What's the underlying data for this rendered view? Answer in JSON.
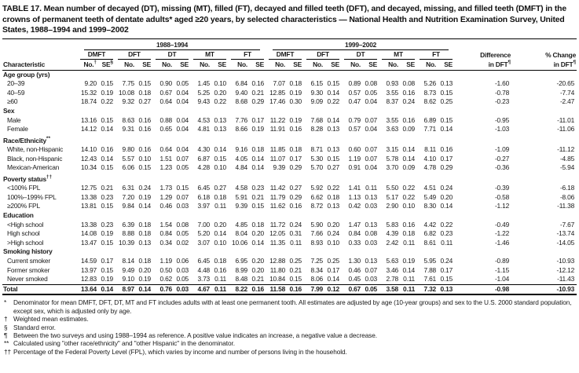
{
  "title": "TABLE 17. Mean number of decayed (DT), missing (MT), filled (FT), decayed and filled teeth (DFT), and decayed, missing, and filled teeth (DMFT) in the crowns of permanent teeth of dentate adults* aged ≥20 years, by selected characteristics — National Health and Nutrition Examination Survey, United States, 1988–1994 and 1999–2002",
  "header": {
    "characteristic": "Characteristic",
    "periods": [
      "1988–1994",
      "1999–2002"
    ],
    "measures": [
      "DMFT",
      "DFT",
      "DT",
      "MT",
      "FT"
    ],
    "no_label": "No.",
    "se_label": "SE",
    "no_sup": "†",
    "se_sup": "§",
    "difference_line1": "Difference",
    "difference_line2": "in DFT",
    "difference_sup": "¶",
    "pct_change_line1": "% Change",
    "pct_change_line2": "in DFT",
    "pct_change_sup": "¶"
  },
  "sections": [
    {
      "label": "Age group (yrs)",
      "sup": "",
      "rows": [
        {
          "label": "20–39",
          "values": [
            "9.20",
            "0.15",
            "7.75",
            "0.15",
            "0.90",
            "0.05",
            "1.45",
            "0.10",
            "6.84",
            "0.16",
            "7.07",
            "0.18",
            "6.15",
            "0.15",
            "0.89",
            "0.08",
            "0.93",
            "0.08",
            "5.26",
            "0.13"
          ],
          "diff": "-1.60",
          "change": "-20.65"
        },
        {
          "label": "40–59",
          "values": [
            "15.32",
            "0.19",
            "10.08",
            "0.18",
            "0.67",
            "0.04",
            "5.25",
            "0.20",
            "9.40",
            "0.21",
            "12.85",
            "0.19",
            "9.30",
            "0.14",
            "0.57",
            "0.05",
            "3.55",
            "0.16",
            "8.73",
            "0.15"
          ],
          "diff": "-0.78",
          "change": "-7.74"
        },
        {
          "label": "≥60",
          "values": [
            "18.74",
            "0.22",
            "9.32",
            "0.27",
            "0.64",
            "0.04",
            "9.43",
            "0.22",
            "8.68",
            "0.29",
            "17.46",
            "0.30",
            "9.09",
            "0.22",
            "0.47",
            "0.04",
            "8.37",
            "0.24",
            "8.62",
            "0.25"
          ],
          "diff": "-0.23",
          "change": "-2.47"
        }
      ]
    },
    {
      "label": "Sex",
      "sup": "",
      "rows": [
        {
          "label": "Male",
          "values": [
            "13.16",
            "0.15",
            "8.63",
            "0.16",
            "0.88",
            "0.04",
            "4.53",
            "0.13",
            "7.76",
            "0.17",
            "11.22",
            "0.19",
            "7.68",
            "0.14",
            "0.79",
            "0.07",
            "3.55",
            "0.16",
            "6.89",
            "0.15"
          ],
          "diff": "-0.95",
          "change": "-11.01"
        },
        {
          "label": "Female",
          "values": [
            "14.12",
            "0.14",
            "9.31",
            "0.16",
            "0.65",
            "0.04",
            "4.81",
            "0.13",
            "8.66",
            "0.19",
            "11.91",
            "0.16",
            "8.28",
            "0.13",
            "0.57",
            "0.04",
            "3.63",
            "0.09",
            "7.71",
            "0.14"
          ],
          "diff": "-1.03",
          "change": "-11.06"
        }
      ]
    },
    {
      "label": "Race/Ethnicity",
      "sup": "**",
      "rows": [
        {
          "label": "White, non-Hispanic",
          "values": [
            "14.10",
            "0.16",
            "9.80",
            "0.16",
            "0.64",
            "0.04",
            "4.30",
            "0.14",
            "9.16",
            "0.18",
            "11.85",
            "0.18",
            "8.71",
            "0.13",
            "0.60",
            "0.07",
            "3.15",
            "0.14",
            "8.11",
            "0.16"
          ],
          "diff": "-1.09",
          "change": "-11.12"
        },
        {
          "label": "Black, non-Hispanic",
          "values": [
            "12.43",
            "0.14",
            "5.57",
            "0.10",
            "1.51",
            "0.07",
            "6.87",
            "0.15",
            "4.05",
            "0.14",
            "11.07",
            "0.17",
            "5.30",
            "0.15",
            "1.19",
            "0.07",
            "5.78",
            "0.14",
            "4.10",
            "0.17"
          ],
          "diff": "-0.27",
          "change": "-4.85"
        },
        {
          "label": "Mexican-American",
          "values": [
            "10.34",
            "0.15",
            "6.06",
            "0.15",
            "1.23",
            "0.05",
            "4.28",
            "0.10",
            "4.84",
            "0.14",
            "9.39",
            "0.29",
            "5.70",
            "0.27",
            "0.91",
            "0.04",
            "3.70",
            "0.09",
            "4.78",
            "0.29"
          ],
          "diff": "-0.36",
          "change": "-5.94"
        }
      ]
    },
    {
      "label": "Poverty status",
      "sup": "††",
      "rows": [
        {
          "label": "<100% FPL",
          "values": [
            "12.75",
            "0.21",
            "6.31",
            "0.24",
            "1.73",
            "0.15",
            "6.45",
            "0.27",
            "4.58",
            "0.23",
            "11.42",
            "0.27",
            "5.92",
            "0.22",
            "1.41",
            "0.11",
            "5.50",
            "0.22",
            "4.51",
            "0.24"
          ],
          "diff": "-0.39",
          "change": "-6.18"
        },
        {
          "label": "100%–199% FPL",
          "values": [
            "13.38",
            "0.23",
            "7.20",
            "0.19",
            "1.29",
            "0.07",
            "6.18",
            "0.18",
            "5.91",
            "0.21",
            "11.79",
            "0.29",
            "6.62",
            "0.18",
            "1.13",
            "0.13",
            "5.17",
            "0.22",
            "5.49",
            "0.20"
          ],
          "diff": "-0.58",
          "change": "-8.06"
        },
        {
          "label": "≥200% FPL",
          "values": [
            "13.81",
            "0.15",
            "9.84",
            "0.14",
            "0.46",
            "0.03",
            "3.97",
            "0.11",
            "9.39",
            "0.15",
            "11.62",
            "0.16",
            "8.72",
            "0.13",
            "0.42",
            "0.03",
            "2.90",
            "0.10",
            "8.30",
            "0.14"
          ],
          "diff": "-1.12",
          "change": "-11.38"
        }
      ]
    },
    {
      "label": "Education",
      "sup": "",
      "rows": [
        {
          "label": "<High school",
          "values": [
            "13.38",
            "0.23",
            "6.39",
            "0.18",
            "1.54",
            "0.08",
            "7.00",
            "0.20",
            "4.85",
            "0.18",
            "11.72",
            "0.24",
            "5.90",
            "0.20",
            "1.47",
            "0.13",
            "5.83",
            "0.16",
            "4.42",
            "0.22"
          ],
          "diff": "-0.49",
          "change": "-7.67"
        },
        {
          "label": "High school",
          "values": [
            "14.08",
            "0.19",
            "8.88",
            "0.18",
            "0.84",
            "0.05",
            "5.20",
            "0.14",
            "8.04",
            "0.20",
            "12.05",
            "0.31",
            "7.66",
            "0.24",
            "0.84",
            "0.08",
            "4.39",
            "0.18",
            "6.82",
            "0.23"
          ],
          "diff": "-1.22",
          "change": "-13.74"
        },
        {
          "label": ">High school",
          "values": [
            "13.47",
            "0.15",
            "10.39",
            "0.13",
            "0.34",
            "0.02",
            "3.07",
            "0.10",
            "10.06",
            "0.14",
            "11.35",
            "0.11",
            "8.93",
            "0.10",
            "0.33",
            "0.03",
            "2.42",
            "0.11",
            "8.61",
            "0.11"
          ],
          "diff": "-1.46",
          "change": "-14.05"
        }
      ]
    },
    {
      "label": "Smoking history",
      "sup": "",
      "rows": [
        {
          "label": "Current smoker",
          "values": [
            "14.59",
            "0.17",
            "8.14",
            "0.18",
            "1.19",
            "0.06",
            "6.45",
            "0.18",
            "6.95",
            "0.20",
            "12.88",
            "0.25",
            "7.25",
            "0.25",
            "1.30",
            "0.13",
            "5.63",
            "0.19",
            "5.95",
            "0.24"
          ],
          "diff": "-0.89",
          "change": "-10.93"
        },
        {
          "label": "Former smoker",
          "values": [
            "13.97",
            "0.15",
            "9.49",
            "0.20",
            "0.50",
            "0.03",
            "4.48",
            "0.16",
            "8.99",
            "0.20",
            "11.80",
            "0.21",
            "8.34",
            "0.17",
            "0.46",
            "0.07",
            "3.46",
            "0.14",
            "7.88",
            "0.17"
          ],
          "diff": "-1.15",
          "change": "-12.12"
        },
        {
          "label": "Never smoked",
          "values": [
            "12.83",
            "0.19",
            "9.10",
            "0.19",
            "0.62",
            "0.05",
            "3.73",
            "0.11",
            "8.48",
            "0.21",
            "10.84",
            "0.15",
            "8.06",
            "0.14",
            "0.45",
            "0.03",
            "2.78",
            "0.11",
            "7.61",
            "0.15"
          ],
          "diff": "-1.04",
          "change": "-11.43"
        }
      ]
    }
  ],
  "total": {
    "label": "Total",
    "values": [
      "13.64",
      "0.14",
      "8.97",
      "0.14",
      "0.76",
      "0.03",
      "4.67",
      "0.11",
      "8.22",
      "0.16",
      "11.58",
      "0.16",
      "7.99",
      "0.12",
      "0.67",
      "0.05",
      "3.58",
      "0.11",
      "7.32",
      "0.13"
    ],
    "diff": "-0.98",
    "change": "-10.93"
  },
  "footnotes": [
    {
      "marker": "*",
      "text": "Denominator for mean DMFT, DFT, DT, MT and FT includes adults with at least one permanent tooth. All estimates are adjusted by age (10-year groups) and sex to the U.S. 2000 standard population, except sex, which is adjusted only by age."
    },
    {
      "marker": "†",
      "text": "Weighted mean estimates."
    },
    {
      "marker": "§",
      "text": "Standard error."
    },
    {
      "marker": "¶",
      "text": "Between the two surveys and using 1988–1994 as reference. A positive value indicates an increase, a negative value a decrease."
    },
    {
      "marker": "**",
      "text": "Calculated using \"other race/ethnicity\" and \"other Hispanic\" in the denominator."
    },
    {
      "marker": "††",
      "text": "Percentage of the Federal Poverty Level (FPL), which varies by income and number of persons living in the household."
    }
  ]
}
